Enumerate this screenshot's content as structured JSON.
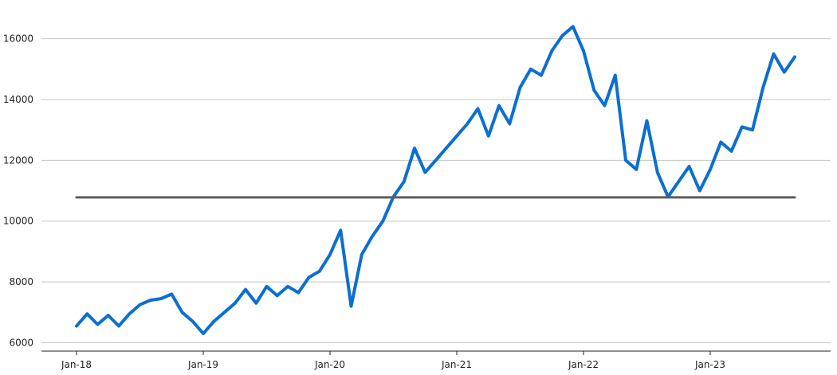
{
  "chart_data": {
    "type": "line",
    "title": "",
    "xlabel": "",
    "ylabel": "",
    "x_tick_labels": [
      "Jan-18",
      "Jan-19",
      "Jan-20",
      "Jan-21",
      "Jan-22",
      "Jan-23"
    ],
    "y_ticks": [
      6000,
      8000,
      10000,
      12000,
      14000,
      16000
    ],
    "ylim": [
      5750,
      16750
    ],
    "grid": "horizontal",
    "legend": "none",
    "series": [
      {
        "color": "#0b6fd1",
        "x": [
          "2018-01",
          "2018-02",
          "2018-03",
          "2018-04",
          "2018-05",
          "2018-06",
          "2018-07",
          "2018-08",
          "2018-09",
          "2018-10",
          "2018-11",
          "2018-12",
          "2019-01",
          "2019-02",
          "2019-03",
          "2019-04",
          "2019-05",
          "2019-06",
          "2019-07",
          "2019-08",
          "2019-09",
          "2019-10",
          "2019-11",
          "2019-12",
          "2020-01",
          "2020-02",
          "2020-03",
          "2020-04",
          "2020-05",
          "2020-06",
          "2020-07",
          "2020-08",
          "2020-09",
          "2020-10",
          "2020-11",
          "2020-12",
          "2021-01",
          "2021-02",
          "2021-03",
          "2021-04",
          "2021-05",
          "2021-06",
          "2021-07",
          "2021-08",
          "2021-09",
          "2021-10",
          "2021-11",
          "2021-12",
          "2022-01",
          "2022-02",
          "2022-03",
          "2022-04",
          "2022-05",
          "2022-06",
          "2022-07",
          "2022-08",
          "2022-09",
          "2022-10",
          "2022-11",
          "2022-12",
          "2023-01",
          "2023-02",
          "2023-03",
          "2023-04",
          "2023-05",
          "2023-06",
          "2023-07",
          "2023-08",
          "2023-09"
        ],
        "values": [
          6550,
          6950,
          6600,
          6900,
          6550,
          6950,
          7250,
          7400,
          7450,
          7600,
          7000,
          6700,
          6300,
          6700,
          7000,
          7300,
          7750,
          7300,
          7850,
          7550,
          7850,
          7650,
          8150,
          8350,
          8900,
          9700,
          7200,
          8900,
          9500,
          10000,
          10800,
          11300,
          12400,
          11600,
          12000,
          12400,
          12800,
          13200,
          13700,
          12800,
          13800,
          13200,
          14400,
          15000,
          14800,
          15600,
          16100,
          16400,
          15600,
          14300,
          13800,
          14800,
          12000,
          11700,
          13300,
          11600,
          10800,
          11300,
          11800,
          11000,
          11700,
          12600,
          12300,
          13100,
          13000,
          14400,
          15500,
          14900,
          15400
        ]
      },
      {
        "color": "#5d5d5d",
        "x": [
          "2018-01",
          "2023-09"
        ],
        "values": [
          10780,
          10780
        ]
      }
    ]
  }
}
